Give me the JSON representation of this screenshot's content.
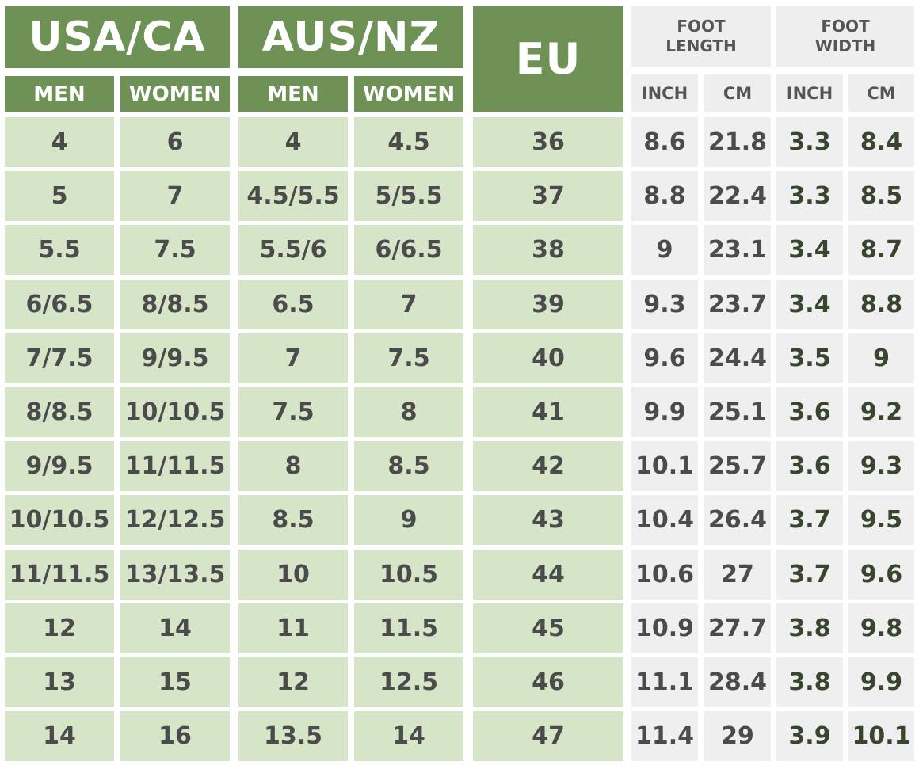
{
  "headers": {
    "usa_ca": "USA/CA",
    "aus_nz": "AUS/NZ",
    "eu": "EU",
    "foot_length": [
      "FOOT",
      "LENGTH"
    ],
    "foot_width": [
      "FOOT",
      "WIDTH"
    ],
    "men": "MEN",
    "women": "WOMEN",
    "inch": "INCH",
    "cm": "CM"
  },
  "rows": [
    {
      "us_men": "4",
      "us_women": "6",
      "au_men": "4",
      "au_women": "4.5",
      "eu": "36",
      "len_inch": "8.6",
      "len_cm": "21.8",
      "wid_inch": "3.3",
      "wid_cm": "8.4"
    },
    {
      "us_men": "5",
      "us_women": "7",
      "au_men": "4.5/5.5",
      "au_women": "5/5.5",
      "eu": "37",
      "len_inch": "8.8",
      "len_cm": "22.4",
      "wid_inch": "3.3",
      "wid_cm": "8.5"
    },
    {
      "us_men": "5.5",
      "us_women": "7.5",
      "au_men": "5.5/6",
      "au_women": "6/6.5",
      "eu": "38",
      "len_inch": "9",
      "len_cm": "23.1",
      "wid_inch": "3.4",
      "wid_cm": "8.7"
    },
    {
      "us_men": "6/6.5",
      "us_women": "8/8.5",
      "au_men": "6.5",
      "au_women": "7",
      "eu": "39",
      "len_inch": "9.3",
      "len_cm": "23.7",
      "wid_inch": "3.4",
      "wid_cm": "8.8"
    },
    {
      "us_men": "7/7.5",
      "us_women": "9/9.5",
      "au_men": "7",
      "au_women": "7.5",
      "eu": "40",
      "len_inch": "9.6",
      "len_cm": "24.4",
      "wid_inch": "3.5",
      "wid_cm": "9"
    },
    {
      "us_men": "8/8.5",
      "us_women": "10/10.5",
      "au_men": "7.5",
      "au_women": "8",
      "eu": "41",
      "len_inch": "9.9",
      "len_cm": "25.1",
      "wid_inch": "3.6",
      "wid_cm": "9.2"
    },
    {
      "us_men": "9/9.5",
      "us_women": "11/11.5",
      "au_men": "8",
      "au_women": "8.5",
      "eu": "42",
      "len_inch": "10.1",
      "len_cm": "25.7",
      "wid_inch": "3.6",
      "wid_cm": "9.3"
    },
    {
      "us_men": "10/10.5",
      "us_women": "12/12.5",
      "au_men": "8.5",
      "au_women": "9",
      "eu": "43",
      "len_inch": "10.4",
      "len_cm": "26.4",
      "wid_inch": "3.7",
      "wid_cm": "9.5"
    },
    {
      "us_men": "11/11.5",
      "us_women": "13/13.5",
      "au_men": "10",
      "au_women": "10.5",
      "eu": "44",
      "len_inch": "10.6",
      "len_cm": "27",
      "wid_inch": "3.7",
      "wid_cm": "9.6"
    },
    {
      "us_men": "12",
      "us_women": "14",
      "au_men": "11",
      "au_women": "11.5",
      "eu": "45",
      "len_inch": "10.9",
      "len_cm": "27.7",
      "wid_inch": "3.8",
      "wid_cm": "9.8"
    },
    {
      "us_men": "13",
      "us_women": "15",
      "au_men": "12",
      "au_women": "12.5",
      "eu": "46",
      "len_inch": "11.1",
      "len_cm": "28.4",
      "wid_inch": "3.8",
      "wid_cm": "9.9"
    },
    {
      "us_men": "14",
      "us_women": "16",
      "au_men": "13.5",
      "au_women": "14",
      "eu": "47",
      "len_inch": "11.4",
      "len_cm": "29",
      "wid_inch": "3.9",
      "wid_cm": "10.1"
    }
  ],
  "colors": {
    "header_green": "#6e9155",
    "cell_green": "#d6e4c7",
    "cell_gray": "#efefef",
    "header_gray": "#eeeeee"
  }
}
